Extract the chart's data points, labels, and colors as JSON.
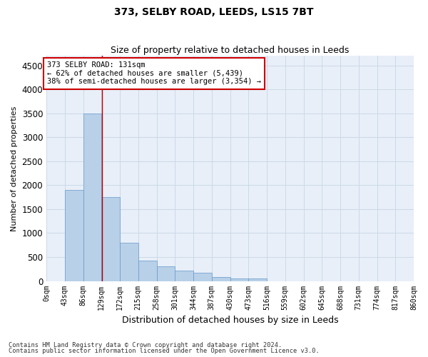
{
  "title": "373, SELBY ROAD, LEEDS, LS15 7BT",
  "subtitle": "Size of property relative to detached houses in Leeds",
  "xlabel": "Distribution of detached houses by size in Leeds",
  "ylabel": "Number of detached properties",
  "bin_edges": [
    0,
    43,
    86,
    129,
    172,
    215,
    258,
    301,
    344,
    387,
    430,
    473,
    516,
    559,
    602,
    645,
    688,
    731,
    774,
    817,
    860
  ],
  "bar_heights": [
    0,
    1900,
    3500,
    1750,
    800,
    430,
    300,
    220,
    170,
    80,
    60,
    50,
    0,
    0,
    0,
    0,
    0,
    0,
    0,
    0
  ],
  "bar_color": "#b8d0e8",
  "bar_edge_color": "#6699cc",
  "grid_color": "#ccd9e8",
  "bg_color": "#e8eff8",
  "property_size": 131,
  "property_line_color": "#bb0000",
  "annotation_text": "373 SELBY ROAD: 131sqm\n← 62% of detached houses are smaller (5,439)\n38% of semi-detached houses are larger (3,354) →",
  "annotation_box_color": "#ffffff",
  "annotation_border_color": "#cc0000",
  "ylim": [
    0,
    4700
  ],
  "yticks": [
    0,
    500,
    1000,
    1500,
    2000,
    2500,
    3000,
    3500,
    4000,
    4500
  ],
  "footer_line1": "Contains HM Land Registry data © Crown copyright and database right 2024.",
  "footer_line2": "Contains public sector information licensed under the Open Government Licence v3.0.",
  "title_fontsize": 10,
  "subtitle_fontsize": 9,
  "tick_label_fontsize": 7,
  "ylabel_fontsize": 8,
  "xlabel_fontsize": 9
}
